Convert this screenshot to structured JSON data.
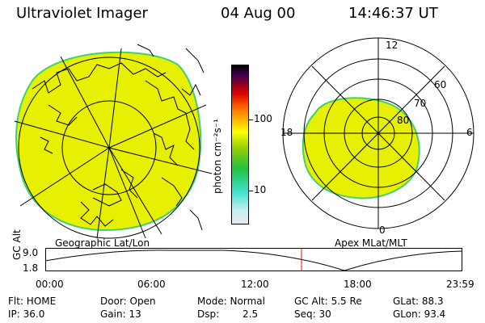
{
  "header": {
    "instrument": "Ultraviolet Imager",
    "date": "04 Aug 00",
    "time": "14:46:37 UT"
  },
  "geo_map": {
    "label": "Geographic Lat/Lon"
  },
  "polar_plot": {
    "label": "Apex MLat/MLT",
    "mlt_labels": {
      "top": "12",
      "left": "18",
      "right": "6",
      "bottom": "0"
    },
    "lat_labels": [
      "60",
      "70",
      "80"
    ]
  },
  "colorbar": {
    "unit_label": "photon cm⁻²s⁻¹",
    "ticks": [
      "100",
      "10"
    ],
    "scale": "log",
    "colors": [
      "#e8e8f0",
      "#c8f0f0",
      "#40e0d0",
      "#20c040",
      "#9ad000",
      "#ffff00",
      "#ffb000",
      "#ff6000",
      "#e00000",
      "#900020",
      "#400050",
      "#000000"
    ]
  },
  "altitude_plot": {
    "ylabel": "GC Alt",
    "yticks": [
      "9.0",
      "1.8"
    ],
    "xticks": [
      "00:00",
      "06:00",
      "12:00",
      "18:00",
      "23:59"
    ],
    "marker_color": "#ff0000",
    "marker_time": "14:46:37"
  },
  "status": {
    "row1": {
      "flt": "Flt: HOME",
      "door": "Door: Open",
      "mode": "Mode: Normal",
      "gcalt": "GC Alt: 5.5 Re",
      "glat": "GLat: 88.3"
    },
    "row2": {
      "ip": "IP: 36.0",
      "gain": "Gain: 13",
      "dsp_label": "Dsp:",
      "dsp_value": "2.5",
      "seq": "Seq: 30",
      "glon": "GLon: 93.4"
    }
  },
  "palette": {
    "emission_fill": "#e6f000",
    "emission_edge": "#40d070"
  }
}
